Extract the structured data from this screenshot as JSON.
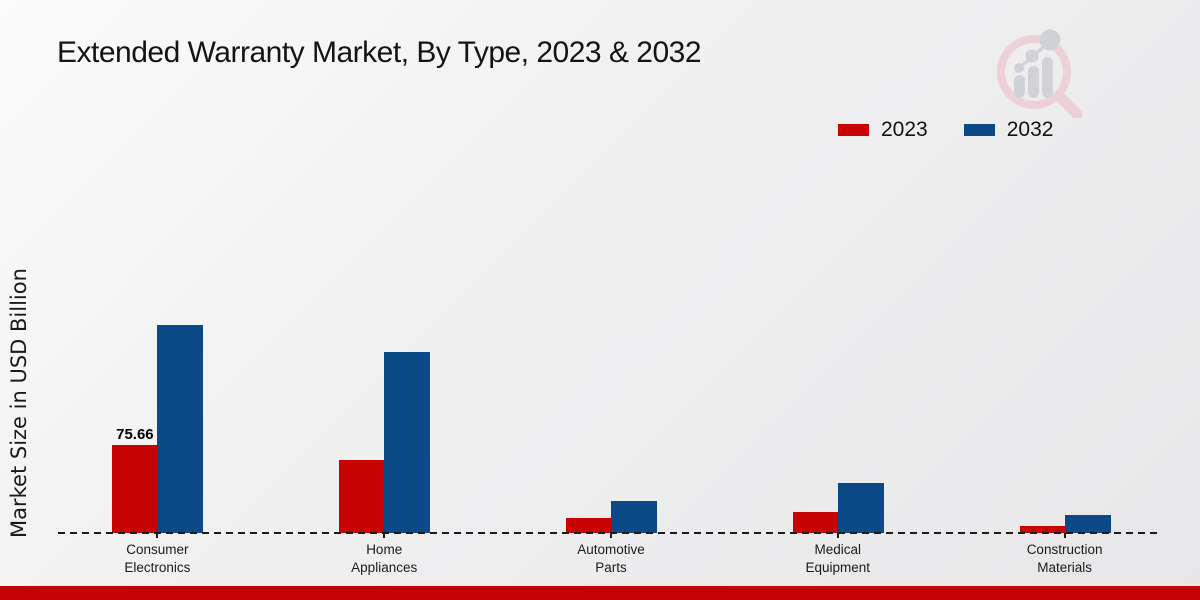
{
  "title": "Extended Warranty Market, By Type, 2023 & 2032",
  "legend": {
    "items": [
      {
        "label": "2023",
        "color": "#c80303"
      },
      {
        "label": "2032",
        "color": "#0b4a87"
      }
    ]
  },
  "watermark": {
    "name": "magnifier-bar-chart-logo",
    "ring_color": "#eccdd2",
    "bars_color": "#cdced4"
  },
  "accent": {
    "bottom_bar_color": "#c40404"
  },
  "chart_data": {
    "type": "bar",
    "title": "Extended Warranty Market, By Type, 2023 & 2032",
    "xlabel": "",
    "ylabel": "Market Size in USD Billion",
    "categories": [
      "Consumer\nElectronics",
      "Home\nAppliances",
      "Automotive\nParts",
      "Medical\nEquipment",
      "Construction\nMaterials"
    ],
    "series": [
      {
        "name": "2023",
        "color": "#c80303",
        "values": [
          75.66,
          63.0,
          13.2,
          17.8,
          6.3
        ]
      },
      {
        "name": "2032",
        "color": "#0b4a87",
        "values": [
          178.8,
          156.0,
          27.3,
          42.7,
          15.2
        ]
      }
    ],
    "annotations": [
      {
        "text": "75.66",
        "series_index": 0,
        "category_index": 0
      }
    ],
    "ylim": [
      0,
      200
    ],
    "y_axis_ticks_visible": false,
    "grid": false,
    "legend_position": "top-right",
    "baseline_style": "dashed"
  }
}
